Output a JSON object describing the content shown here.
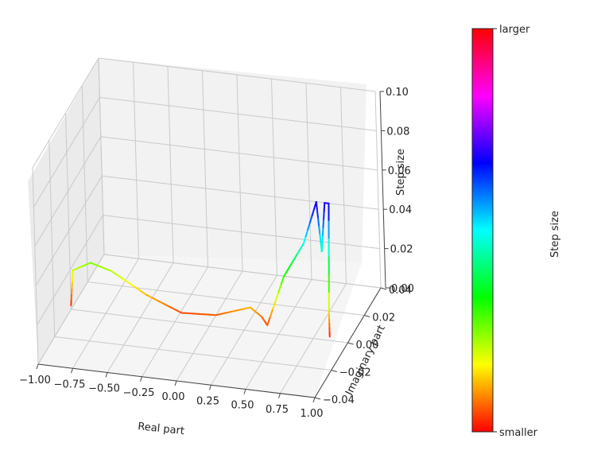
{
  "chart_data": {
    "type": "line",
    "projection": "3d",
    "xlabel": "Real part",
    "ylabel": "Imaginary part",
    "zlabel": "Step size",
    "xlim": [
      -1.0,
      1.0
    ],
    "ylim": [
      -0.04,
      0.04
    ],
    "zlim": [
      0.0,
      0.1
    ],
    "x_ticks": [
      "−1.00",
      "−0.75",
      "−0.50",
      "−0.25",
      "0.00",
      "0.25",
      "0.50",
      "0.75",
      "1.00"
    ],
    "y_ticks": [
      "−0.04",
      "−0.02",
      "0.00",
      "0.02",
      "0.04"
    ],
    "z_ticks": [
      "0.00",
      "0.02",
      "0.04",
      "0.06",
      "0.08",
      "0.10"
    ],
    "grid": true,
    "series": [
      {
        "colormap": "hsv",
        "points": [
          {
            "x": -1.0,
            "y": 0.0,
            "z": 0.002
          },
          {
            "x": -0.98,
            "y": 0.0,
            "z": 0.02
          },
          {
            "x": -0.85,
            "y": 0.0,
            "z": 0.025
          },
          {
            "x": -0.7,
            "y": 0.0,
            "z": 0.022
          },
          {
            "x": -0.45,
            "y": 0.0,
            "z": 0.012
          },
          {
            "x": -0.2,
            "y": 0.0,
            "z": 0.005
          },
          {
            "x": 0.05,
            "y": 0.0,
            "z": 0.006
          },
          {
            "x": 0.3,
            "y": 0.0,
            "z": 0.012
          },
          {
            "x": 0.38,
            "y": 0.0,
            "z": 0.008
          },
          {
            "x": 0.42,
            "y": 0.0,
            "z": 0.004
          },
          {
            "x": 0.55,
            "y": 0.0,
            "z": 0.03
          },
          {
            "x": 0.7,
            "y": 0.0,
            "z": 0.048
          },
          {
            "x": 0.8,
            "y": 0.0,
            "z": 0.07
          },
          {
            "x": 0.83,
            "y": 0.0,
            "z": 0.045
          },
          {
            "x": 0.86,
            "y": 0.0,
            "z": 0.07
          },
          {
            "x": 0.89,
            "y": 0.0,
            "z": 0.07
          },
          {
            "x": 0.87,
            "y": 0.0,
            "z": 0.015
          },
          {
            "x": 0.87,
            "y": 0.0,
            "z": 0.002
          }
        ]
      }
    ],
    "colorbar": {
      "label": "Step size",
      "top_label": "larger",
      "bottom_label": "smaller",
      "colormap": "hsv"
    }
  }
}
